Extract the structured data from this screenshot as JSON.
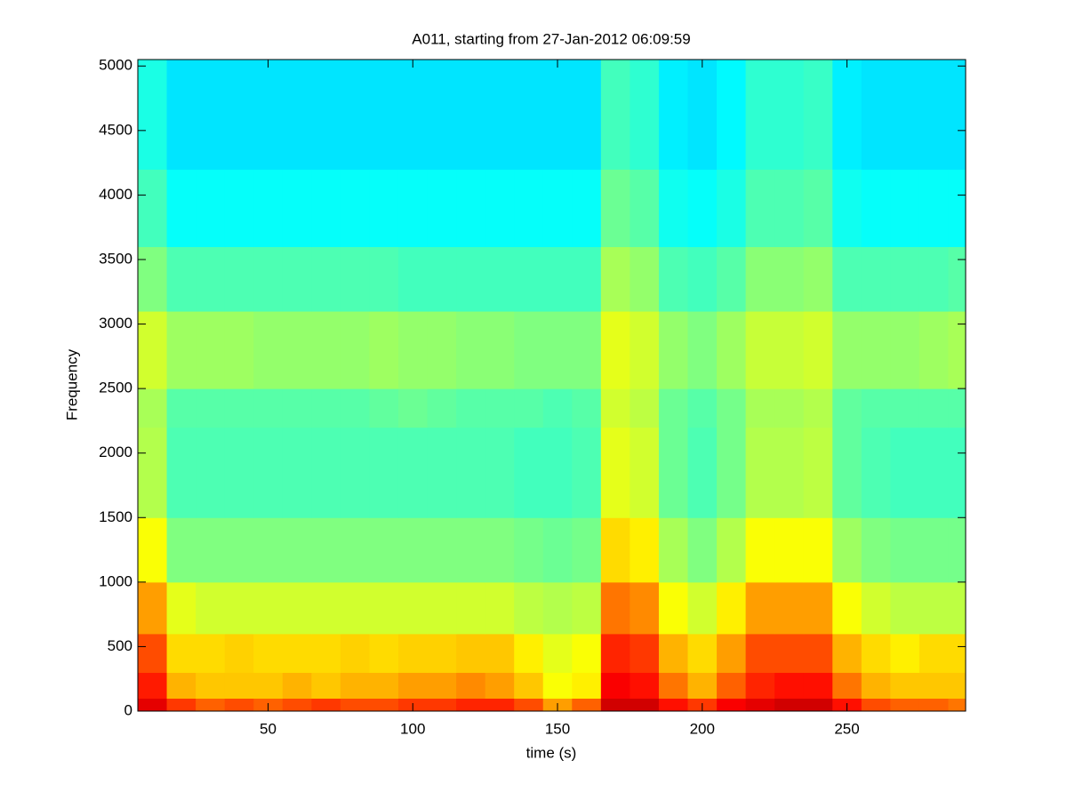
{
  "chart_data": {
    "type": "heatmap",
    "title": "A011, starting from 27-Jan-2012 06:09:59",
    "xlabel": "time (s)",
    "ylabel": "Frequency",
    "colormap": "jet",
    "clim": [
      0,
      1
    ],
    "xlim": [
      5,
      291
    ],
    "ylim": [
      0,
      5050
    ],
    "xticks": [
      50,
      100,
      150,
      200,
      250
    ],
    "yticks": [
      0,
      500,
      1000,
      1500,
      2000,
      2500,
      3000,
      3500,
      4000,
      4500,
      5000
    ],
    "x_edges": [
      5,
      15,
      25,
      35,
      45,
      55,
      65,
      75,
      85,
      95,
      105,
      115,
      125,
      135,
      145,
      155,
      165,
      175,
      185,
      195,
      205,
      215,
      225,
      235,
      245,
      255,
      265,
      275,
      285,
      291
    ],
    "y_edges": [
      0,
      100,
      300,
      600,
      1000,
      1500,
      2200,
      2500,
      3100,
      3600,
      4200,
      5050
    ],
    "z": [
      [
        0.9,
        0.82,
        0.78,
        0.8,
        0.78,
        0.8,
        0.82,
        0.8,
        0.8,
        0.82,
        0.82,
        0.84,
        0.84,
        0.8,
        0.72,
        0.78,
        0.92,
        0.92,
        0.86,
        0.82,
        0.88,
        0.9,
        0.92,
        0.92,
        0.86,
        0.8,
        0.78,
        0.78,
        0.76
      ],
      [
        0.85,
        0.7,
        0.68,
        0.68,
        0.68,
        0.7,
        0.68,
        0.7,
        0.7,
        0.72,
        0.72,
        0.74,
        0.72,
        0.68,
        0.62,
        0.64,
        0.88,
        0.86,
        0.76,
        0.7,
        0.78,
        0.84,
        0.86,
        0.86,
        0.76,
        0.7,
        0.68,
        0.68,
        0.68
      ],
      [
        0.8,
        0.66,
        0.66,
        0.67,
        0.66,
        0.66,
        0.66,
        0.67,
        0.66,
        0.67,
        0.67,
        0.68,
        0.68,
        0.64,
        0.6,
        0.62,
        0.84,
        0.82,
        0.7,
        0.66,
        0.72,
        0.8,
        0.8,
        0.8,
        0.7,
        0.66,
        0.64,
        0.66,
        0.66
      ],
      [
        0.72,
        0.6,
        0.58,
        0.58,
        0.58,
        0.58,
        0.58,
        0.58,
        0.58,
        0.58,
        0.58,
        0.58,
        0.58,
        0.56,
        0.55,
        0.56,
        0.76,
        0.74,
        0.62,
        0.58,
        0.64,
        0.72,
        0.72,
        0.72,
        0.62,
        0.58,
        0.56,
        0.56,
        0.56
      ],
      [
        0.62,
        0.5,
        0.5,
        0.5,
        0.5,
        0.5,
        0.5,
        0.5,
        0.5,
        0.5,
        0.5,
        0.5,
        0.5,
        0.49,
        0.48,
        0.49,
        0.66,
        0.64,
        0.54,
        0.5,
        0.55,
        0.62,
        0.62,
        0.62,
        0.53,
        0.5,
        0.49,
        0.49,
        0.49
      ],
      [
        0.55,
        0.45,
        0.45,
        0.45,
        0.45,
        0.45,
        0.45,
        0.45,
        0.45,
        0.45,
        0.45,
        0.45,
        0.45,
        0.44,
        0.44,
        0.45,
        0.6,
        0.58,
        0.48,
        0.45,
        0.49,
        0.55,
        0.55,
        0.56,
        0.47,
        0.45,
        0.44,
        0.44,
        0.44
      ],
      [
        0.54,
        0.46,
        0.46,
        0.46,
        0.46,
        0.46,
        0.46,
        0.46,
        0.47,
        0.48,
        0.47,
        0.46,
        0.46,
        0.46,
        0.45,
        0.46,
        0.58,
        0.56,
        0.48,
        0.46,
        0.49,
        0.54,
        0.54,
        0.55,
        0.47,
        0.46,
        0.46,
        0.46,
        0.46
      ],
      [
        0.58,
        0.53,
        0.53,
        0.53,
        0.52,
        0.52,
        0.52,
        0.52,
        0.53,
        0.52,
        0.52,
        0.51,
        0.51,
        0.5,
        0.5,
        0.5,
        0.6,
        0.58,
        0.52,
        0.5,
        0.53,
        0.57,
        0.57,
        0.58,
        0.52,
        0.52,
        0.52,
        0.53,
        0.54
      ],
      [
        0.5,
        0.45,
        0.45,
        0.45,
        0.45,
        0.45,
        0.45,
        0.45,
        0.45,
        0.44,
        0.44,
        0.44,
        0.44,
        0.44,
        0.44,
        0.44,
        0.54,
        0.52,
        0.45,
        0.44,
        0.46,
        0.51,
        0.51,
        0.52,
        0.45,
        0.45,
        0.45,
        0.45,
        0.46
      ],
      [
        0.44,
        0.38,
        0.38,
        0.38,
        0.38,
        0.38,
        0.38,
        0.38,
        0.38,
        0.38,
        0.38,
        0.38,
        0.38,
        0.38,
        0.38,
        0.38,
        0.48,
        0.46,
        0.39,
        0.38,
        0.4,
        0.45,
        0.45,
        0.46,
        0.39,
        0.38,
        0.38,
        0.38,
        0.38
      ],
      [
        0.4,
        0.35,
        0.35,
        0.35,
        0.35,
        0.35,
        0.35,
        0.35,
        0.35,
        0.35,
        0.35,
        0.35,
        0.35,
        0.35,
        0.35,
        0.35,
        0.44,
        0.42,
        0.36,
        0.35,
        0.37,
        0.42,
        0.42,
        0.43,
        0.36,
        0.35,
        0.35,
        0.35,
        0.35
      ]
    ]
  }
}
